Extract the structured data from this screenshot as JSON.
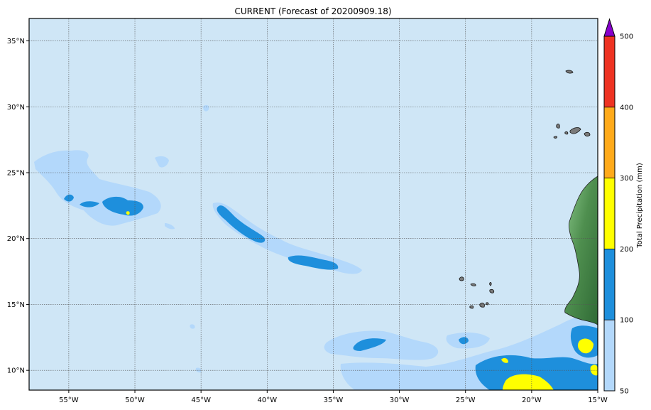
{
  "title": "CURRENT (Forecast of 20200909.18)",
  "map": {
    "lon_ticks": [
      {
        "value": -55,
        "label": "55°W"
      },
      {
        "value": -50,
        "label": "50°W"
      },
      {
        "value": -45,
        "label": "45°W"
      },
      {
        "value": -40,
        "label": "40°W"
      },
      {
        "value": -35,
        "label": "35°W"
      },
      {
        "value": -30,
        "label": "30°W"
      },
      {
        "value": -25,
        "label": "25°W"
      },
      {
        "value": -20,
        "label": "20°W"
      },
      {
        "value": -15,
        "label": "15°W"
      }
    ],
    "lat_ticks": [
      {
        "value": 35,
        "label": "35°N"
      },
      {
        "value": 30,
        "label": "30°N"
      },
      {
        "value": 25,
        "label": "25°N"
      },
      {
        "value": 20,
        "label": "20°N"
      },
      {
        "value": 15,
        "label": "15°N"
      },
      {
        "value": 10,
        "label": "10°N"
      }
    ],
    "lon_range": [
      -58.0,
      -15.0
    ],
    "lat_range": [
      8.5,
      36.7
    ],
    "ocean_color": "#cfe6f6",
    "land_color": "#5d9a5d",
    "gridlines": true
  },
  "colorbar": {
    "label": "Total Precipitation (mm)",
    "tick_labels": [
      "50",
      "100",
      "200",
      "300",
      "400",
      "500"
    ],
    "levels": [
      50,
      100,
      200,
      300,
      400,
      500
    ],
    "colors": [
      "#b3d8fb",
      "#1e8fdc",
      "#ffff00",
      "#ffaa1a",
      "#ee3322"
    ],
    "extend_color": "#8800cc"
  }
}
